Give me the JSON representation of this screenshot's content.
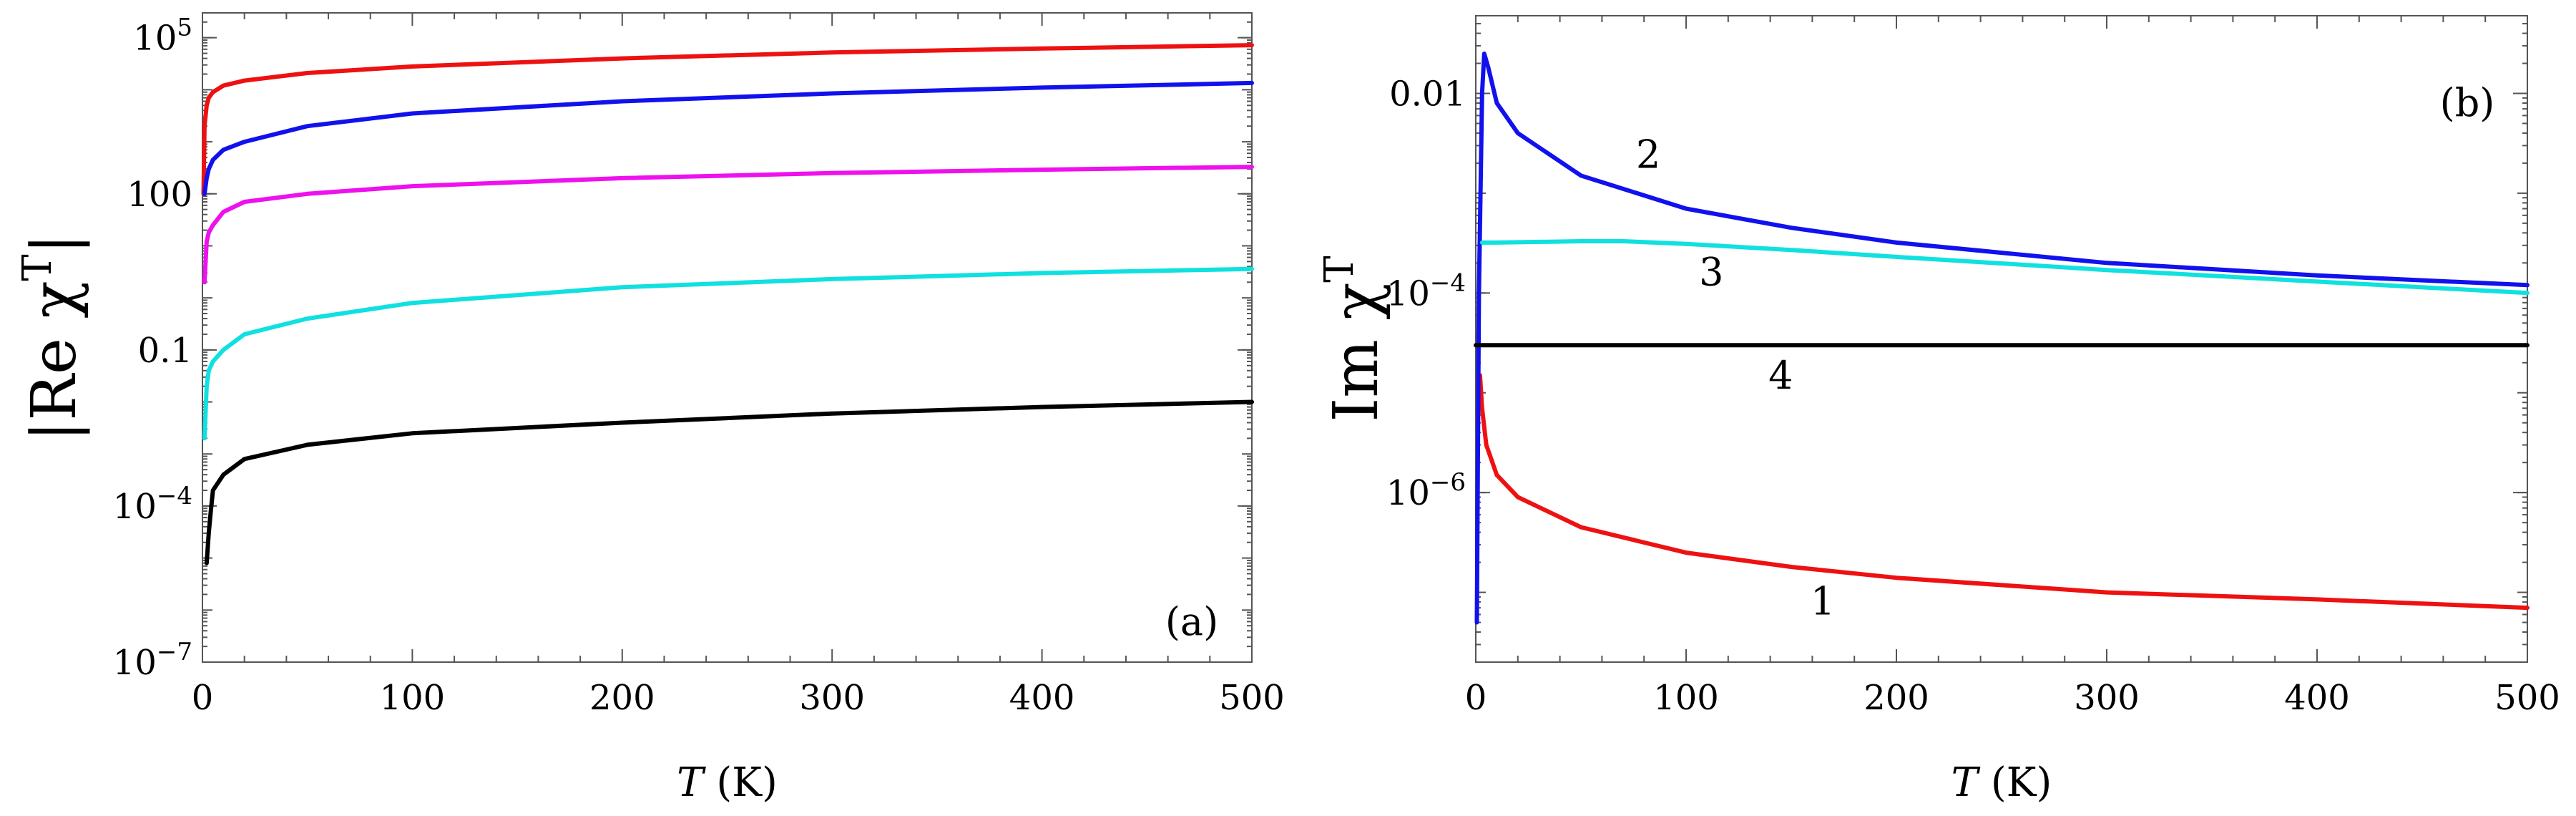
{
  "figure": {
    "panels": [
      "a",
      "b"
    ]
  },
  "chart_data": [
    {
      "type": "line",
      "panel_label": "(a)",
      "xlabel": "T (K)",
      "xlabel_italic": "T",
      "xlabel_unit": "(K)",
      "ylabel": "|Re χT|",
      "ylabel_main": "|Re χ",
      "ylabel_sup": "T",
      "ylabel_close": "|",
      "xlim": [
        0,
        500
      ],
      "ylim": [
        1e-07,
        300000
      ],
      "yscale": "log",
      "xticks": [
        0,
        100,
        200,
        300,
        400,
        500
      ],
      "xtick_labels": [
        "0",
        "100",
        "200",
        "300",
        "400",
        "500"
      ],
      "yticks": [
        1e-07,
        0.0001,
        0.1,
        100,
        100000
      ],
      "ytick_labels": [
        {
          "base": "10",
          "exp": "−7"
        },
        {
          "base": "10",
          "exp": "−4"
        },
        {
          "base": "0.1",
          "exp": ""
        },
        {
          "base": "100",
          "exp": ""
        },
        {
          "base": "10",
          "exp": "5"
        }
      ],
      "series": [
        {
          "name": "red",
          "color": "#ee1111",
          "x": [
            0.5,
            1,
            2,
            3,
            5,
            10,
            20,
            50,
            100,
            200,
            300,
            400,
            500
          ],
          "y": [
            100,
            2000,
            5000,
            7000,
            9000,
            12000,
            15000,
            21000,
            28000,
            40000,
            52000,
            62000,
            72000
          ]
        },
        {
          "name": "blue",
          "color": "#1111ee",
          "x": [
            1,
            2,
            3,
            5,
            10,
            20,
            50,
            100,
            200,
            300,
            400,
            500
          ],
          "y": [
            100,
            200,
            300,
            450,
            700,
            1000,
            2000,
            3500,
            6000,
            8500,
            11000,
            13500
          ]
        },
        {
          "name": "magenta",
          "color": "#ee11ee",
          "x": [
            1,
            2,
            3,
            5,
            10,
            20,
            50,
            100,
            200,
            300,
            400,
            500
          ],
          "y": [
            2,
            12,
            18,
            25,
            45,
            70,
            100,
            140,
            200,
            250,
            290,
            330
          ]
        },
        {
          "name": "cyan",
          "color": "#11e0e0",
          "x": [
            1,
            2,
            3,
            5,
            10,
            20,
            50,
            100,
            200,
            300,
            400,
            500
          ],
          "y": [
            0.002,
            0.02,
            0.04,
            0.06,
            0.1,
            0.2,
            0.4,
            0.8,
            1.6,
            2.3,
            3.0,
            3.6
          ]
        },
        {
          "name": "black",
          "color": "#000000",
          "x": [
            2,
            3,
            4,
            5,
            10,
            20,
            50,
            100,
            200,
            300,
            400,
            500
          ],
          "y": [
            8e-06,
            3e-05,
            8e-05,
            0.0002,
            0.0004,
            0.0008,
            0.0015,
            0.0025,
            0.004,
            0.006,
            0.008,
            0.01
          ]
        }
      ]
    },
    {
      "type": "line",
      "panel_label": "(b)",
      "xlabel": "T (K)",
      "xlabel_italic": "T",
      "xlabel_unit": "(K)",
      "ylabel": "Im χT",
      "ylabel_main": "Im χ",
      "ylabel_sup": "T",
      "xlim": [
        0,
        500
      ],
      "ylim": [
        2e-08,
        0.06
      ],
      "yscale": "log",
      "xticks": [
        0,
        100,
        200,
        300,
        400,
        500
      ],
      "xtick_labels": [
        "0",
        "100",
        "200",
        "300",
        "400",
        "500"
      ],
      "yticks": [
        0.01,
        0.0001,
        1e-06
      ],
      "ytick_labels": [
        {
          "base": "0.01",
          "exp": ""
        },
        {
          "base": "10",
          "exp": "−4"
        },
        {
          "base": "10",
          "exp": "−6"
        }
      ],
      "series": [
        {
          "name": "1",
          "color": "#ee1111",
          "x": [
            2,
            3,
            5,
            10,
            20,
            50,
            100,
            150,
            200,
            300,
            400,
            500
          ],
          "y": [
            1.5e-05,
            7e-06,
            3e-06,
            1.5e-06,
            9e-07,
            4.5e-07,
            2.5e-07,
            1.8e-07,
            1.4e-07,
            1e-07,
            8.5e-08,
            7e-08
          ],
          "label": "1",
          "label_x": 165,
          "label_y": 6e-08
        },
        {
          "name": "2",
          "color": "#1111ee",
          "x": [
            0.5,
            1.5,
            3,
            4,
            6,
            10,
            20,
            50,
            100,
            150,
            200,
            300,
            400,
            500
          ],
          "y": [
            5e-08,
            0.0001,
            0.01,
            0.025,
            0.018,
            0.008,
            0.004,
            0.0015,
            0.0007,
            0.00045,
            0.00032,
            0.0002,
            0.00015,
            0.00012
          ],
          "label": "2",
          "label_x": 82,
          "label_y": 0.0018
        },
        {
          "name": "3",
          "color": "#11e0e0",
          "x": [
            3,
            10,
            50,
            70,
            100,
            150,
            200,
            300,
            400,
            500
          ],
          "y": [
            0.00032,
            0.00032,
            0.00033,
            0.00033,
            0.00031,
            0.00027,
            0.00023,
            0.00017,
            0.00013,
            0.0001
          ],
          "label": "3",
          "label_x": 112,
          "label_y": 0.00012
        },
        {
          "name": "4",
          "color": "#000000",
          "x": [
            0,
            500
          ],
          "y": [
            3e-05,
            3e-05
          ],
          "label": "4",
          "label_x": 145,
          "label_y": 1.1e-05
        }
      ]
    }
  ]
}
